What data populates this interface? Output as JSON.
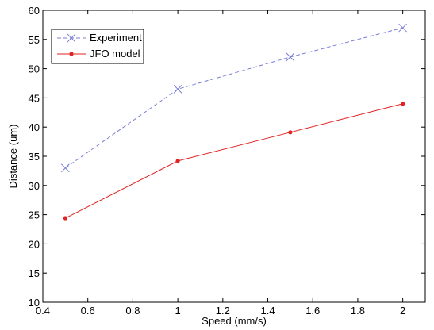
{
  "chart_data": {
    "type": "line",
    "title": "",
    "xlabel": "Speed (mm/s)",
    "ylabel": "Distance (um)",
    "xlim": [
      0.4,
      2.1
    ],
    "ylim": [
      10,
      60
    ],
    "xticks": [
      0.4,
      0.6,
      0.8,
      1,
      1.2,
      1.4,
      1.6,
      1.8,
      2
    ],
    "xtick_labels": [
      "0.4",
      "0.6",
      "0.8",
      "1",
      "1.2",
      "1.4",
      "1.6",
      "1.8",
      "2"
    ],
    "yticks": [
      10,
      15,
      20,
      25,
      30,
      35,
      40,
      45,
      50,
      55,
      60
    ],
    "ytick_labels": [
      "10",
      "15",
      "20",
      "25",
      "30",
      "35",
      "40",
      "45",
      "50",
      "55",
      "60"
    ],
    "grid": false,
    "legend_position": "top-left",
    "series": [
      {
        "name": "Experiment",
        "x": [
          0.5,
          1,
          1.5,
          2
        ],
        "y": [
          33,
          46.5,
          52,
          57
        ],
        "color": "#7b7fd6",
        "line_style": "dashed",
        "marker": "x"
      },
      {
        "name": "JFO model",
        "x": [
          0.5,
          1,
          1.5,
          2
        ],
        "y": [
          24.4,
          34.2,
          39.1,
          44
        ],
        "color": "#e32222",
        "line_style": "solid",
        "marker": "dot"
      }
    ]
  }
}
